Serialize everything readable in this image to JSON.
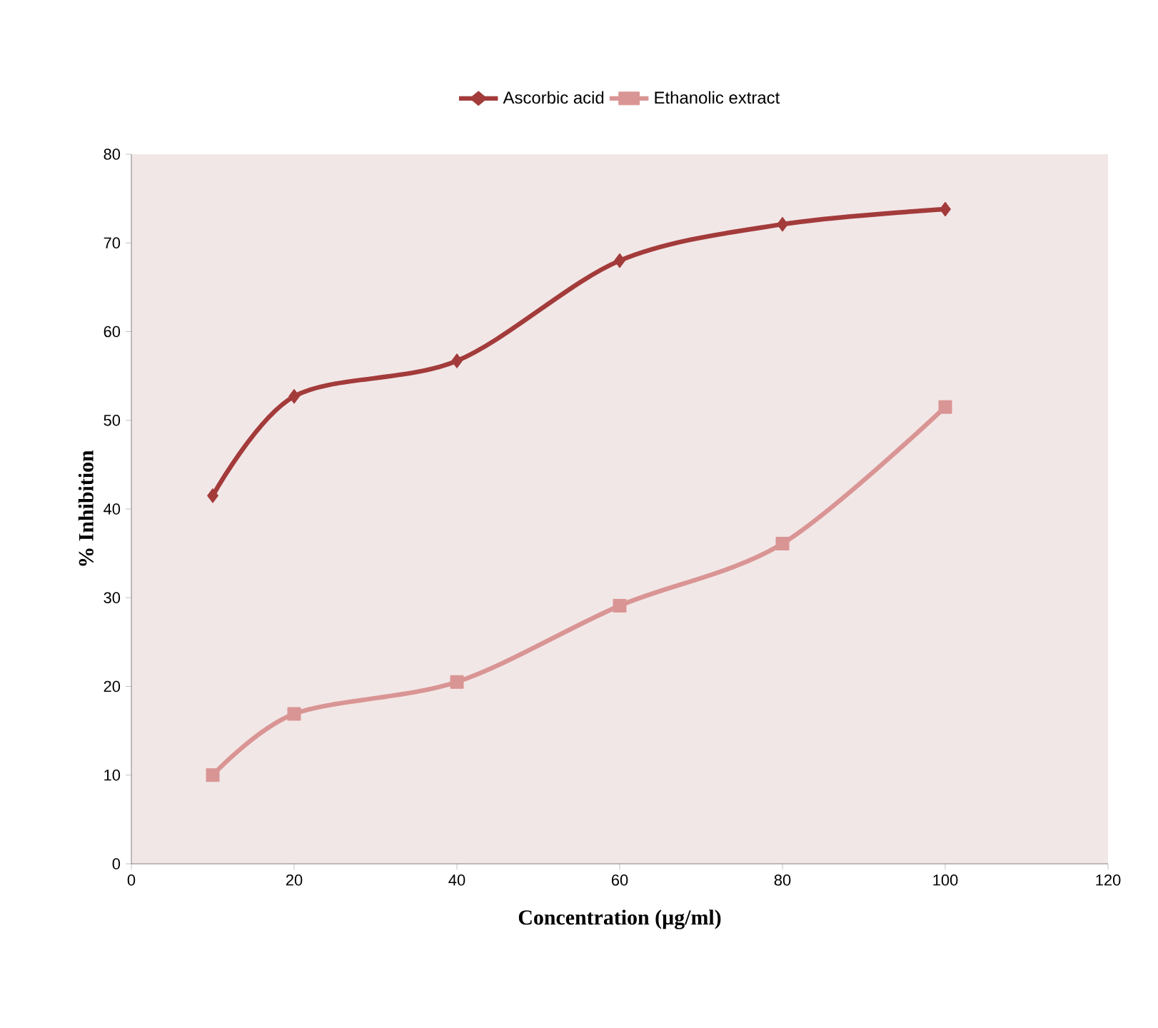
{
  "chart_data": {
    "type": "line",
    "xlabel": "Concentration (µg/ml)",
    "ylabel": "% Inhibition",
    "x": [
      10,
      20,
      40,
      60,
      80,
      100
    ],
    "series": [
      {
        "name": "Ascorbic acid",
        "color": "#a33b3b",
        "marker": "diamond",
        "values": [
          41.5,
          52.7,
          56.7,
          68.0,
          72.1,
          73.8
        ]
      },
      {
        "name": "Ethanolic extract",
        "color": "#d99594",
        "marker": "square",
        "values": [
          10.0,
          16.9,
          20.5,
          29.1,
          36.1,
          51.5
        ]
      }
    ],
    "xlim": [
      0,
      120
    ],
    "xticks": [
      0,
      20,
      40,
      60,
      80,
      100,
      120
    ],
    "ylim": [
      0,
      80
    ],
    "yticks": [
      0,
      10,
      20,
      30,
      40,
      50,
      60,
      70,
      80
    ],
    "grid": false,
    "legend": "top",
    "line_style": "solid"
  }
}
